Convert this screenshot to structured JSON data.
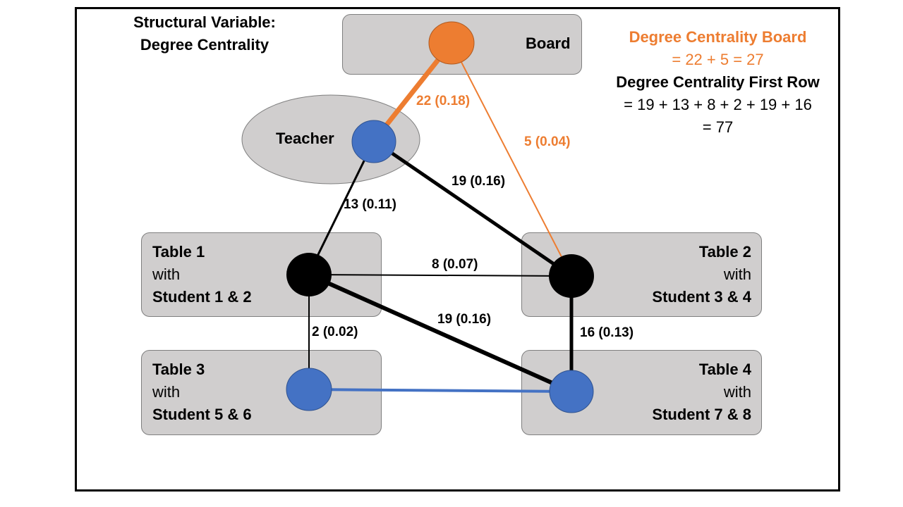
{
  "title": {
    "line1": "Structural Variable:",
    "line2": "Degree Centrality"
  },
  "formula": {
    "board_label": "Degree Centrality Board",
    "board_eq": "= 22 + 5 = 27",
    "first_row_label": "Degree Centrality First Row",
    "first_row_eq": "= 19 + 13 + 8 + 2 + 19 + 16",
    "first_row_result": "=  77"
  },
  "nodes": {
    "board": {
      "label": "Board"
    },
    "teacher": {
      "label": "Teacher"
    },
    "table1": {
      "name": "Table 1",
      "with": "with",
      "students": "Student 1 & 2"
    },
    "table2": {
      "name": "Table 2",
      "with": "with",
      "students": "Student 3 & 4"
    },
    "table3": {
      "name": "Table 3",
      "with": "with",
      "students": "Student 5 & 6"
    },
    "table4": {
      "name": "Table 4",
      "with": "with",
      "students": "Student 7 & 8"
    }
  },
  "edges": {
    "board_teacher": "22 (0.18)",
    "board_table2": "5 (0.04)",
    "teacher_table1": "13 (0.11)",
    "teacher_table2": "19 (0.16)",
    "table1_table2": "8 (0.07)",
    "table1_table4": "19 (0.16)",
    "table1_table3": "2 (0.02)",
    "table2_table4": "16 (0.13)"
  },
  "colors": {
    "orange": "#ed7d31",
    "blue": "#4472c4",
    "black": "#000000",
    "box_fill": "#d0cece"
  }
}
